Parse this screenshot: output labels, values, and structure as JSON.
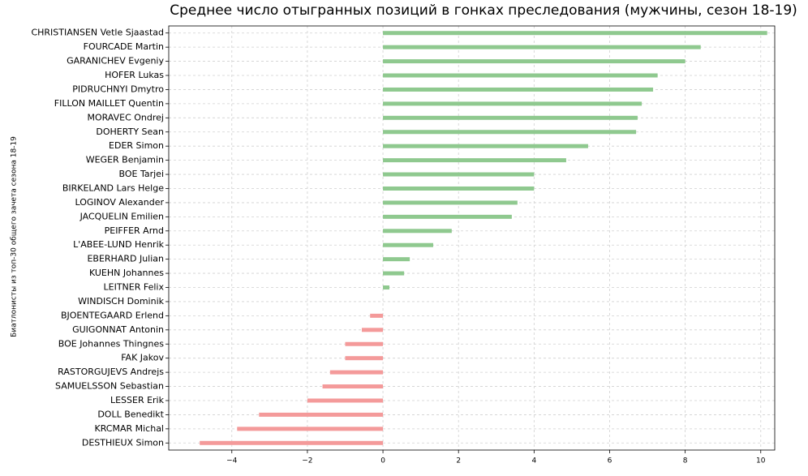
{
  "chart_data": {
    "type": "barh",
    "title": "Среднее число отыгранных позиций в гонках преследования (мужчины, сезон 18-19)",
    "y_label": "Биатлонисты из топ-30 общего зачета сезона 18-19",
    "categories": [
      "CHRISTIANSEN Vetle Sjaastad",
      "FOURCADE Martin",
      "GARANICHEV Evgeniy",
      "HOFER Lukas",
      "PIDRUCHNYI Dmytro",
      "FILLON MAILLET Quentin",
      "MORAVEC Ondrej",
      "DOHERTY Sean",
      "EDER Simon",
      "WEGER Benjamin",
      "BOE Tarjei",
      "BIRKELAND Lars Helge",
      "LOGINOV Alexander",
      "JACQUELIN Emilien",
      "PEIFFER Arnd",
      "L'ABEE-LUND Henrik",
      "EBERHARD Julian",
      "KUEHN Johannes",
      "LEITNER Felix",
      "WINDISCH Dominik",
      "BJOENTEGAARD Erlend",
      "GUIGONNAT Antonin",
      "BOE Johannes Thingnes",
      "FAK Jakov",
      "RASTORGUJEVS Andrejs",
      "SAMUELSSON Sebastian",
      "LESSER Erik",
      "DOLL Benedikt",
      "KRCMAR Michal",
      "DESTHIEUX Simon"
    ],
    "values": [
      10.17,
      8.41,
      8.0,
      7.27,
      7.15,
      6.85,
      6.74,
      6.7,
      5.43,
      4.85,
      4.0,
      4.0,
      3.56,
      3.41,
      1.82,
      1.33,
      0.71,
      0.56,
      0.17,
      0,
      -0.34,
      -0.56,
      -1.0,
      -1.0,
      -1.4,
      -1.6,
      -2.0,
      -3.28,
      -3.86,
      -4.85
    ],
    "positive_color": "#8fc98f",
    "negative_color": "#f49a9a",
    "xlim": [
      -5.67,
      10.37
    ],
    "xticks": [
      {
        "value": -4,
        "label": "−4"
      },
      {
        "value": -2,
        "label": "−2"
      },
      0,
      2,
      4,
      6,
      8,
      10
    ],
    "grid": true
  }
}
